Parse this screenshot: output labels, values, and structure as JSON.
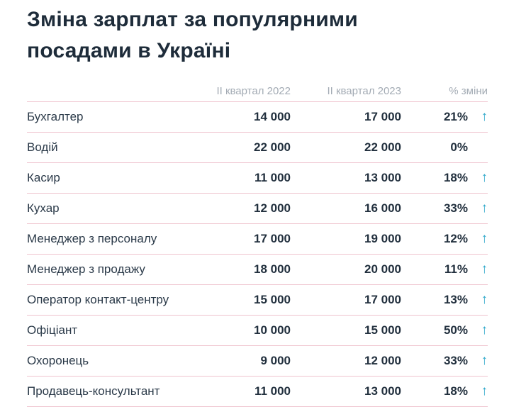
{
  "title": "Зміна зарплат за популярними посадами в Україні",
  "colors": {
    "accent_arrow": "#2aa6c9",
    "divider": "#efc3ce",
    "text": "#22303e",
    "header_text": "#a3abb4",
    "background": "#ffffff"
  },
  "chart_data": {
    "type": "table",
    "title": "Зміна зарплат за популярними посадами в Україні",
    "columns": [
      "ІІ квартал 2022",
      "ІІ квартал 2023",
      "% зміни"
    ],
    "rows": [
      {
        "label": "Бухгалтер",
        "q2_2022": "14 000",
        "q2_2023": "17 000",
        "change": "21%",
        "up": true
      },
      {
        "label": "Водій",
        "q2_2022": "22 000",
        "q2_2023": "22 000",
        "change": "0%",
        "up": false
      },
      {
        "label": "Касир",
        "q2_2022": "11 000",
        "q2_2023": "13 000",
        "change": "18%",
        "up": true
      },
      {
        "label": "Кухар",
        "q2_2022": "12 000",
        "q2_2023": "16 000",
        "change": "33%",
        "up": true
      },
      {
        "label": "Менеджер з персоналу",
        "q2_2022": "17 000",
        "q2_2023": "19 000",
        "change": "12%",
        "up": true
      },
      {
        "label": "Менеджер з продажу",
        "q2_2022": "18 000",
        "q2_2023": "20 000",
        "change": "11%",
        "up": true
      },
      {
        "label": "Оператор контакт-центру",
        "q2_2022": "15 000",
        "q2_2023": "17 000",
        "change": "13%",
        "up": true
      },
      {
        "label": "Офіціант",
        "q2_2022": "10 000",
        "q2_2023": "15 000",
        "change": "50%",
        "up": true
      },
      {
        "label": "Охоронець",
        "q2_2022": "9 000",
        "q2_2023": "12 000",
        "change": "33%",
        "up": true
      },
      {
        "label": "Продавець-консультант",
        "q2_2022": "11 000",
        "q2_2023": "13 000",
        "change": "18%",
        "up": true
      }
    ]
  }
}
